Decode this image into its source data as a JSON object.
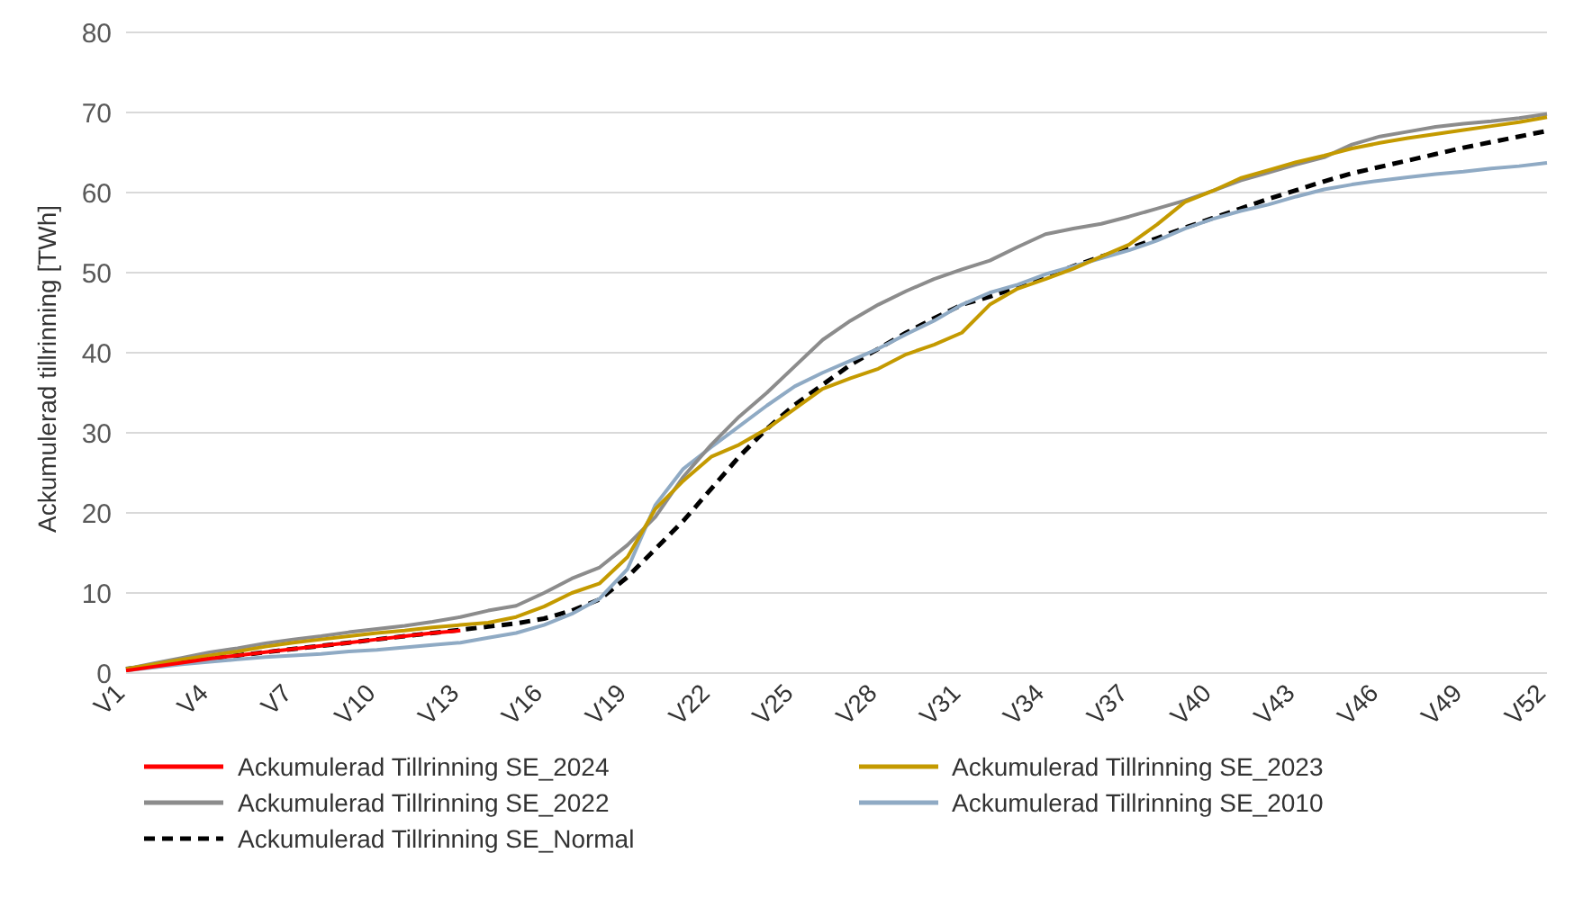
{
  "chart_data": {
    "type": "line",
    "ylabel": "Ackumulerad tillrinning [TWh]",
    "categories": [
      "V1",
      null,
      null,
      "V4",
      null,
      null,
      "V7",
      null,
      null,
      "V10",
      null,
      null,
      "V13",
      null,
      null,
      "V16",
      null,
      null,
      "V19",
      null,
      null,
      "V22",
      null,
      null,
      "V25",
      null,
      null,
      "V28",
      null,
      null,
      "V31",
      null,
      null,
      "V34",
      null,
      null,
      "V37",
      null,
      null,
      "V40",
      null,
      null,
      "V43",
      null,
      null,
      "V46",
      null,
      null,
      "V49",
      null,
      null,
      "V52"
    ],
    "ylim": [
      0,
      80
    ],
    "yticks": [
      0,
      10,
      20,
      30,
      40,
      50,
      60,
      70,
      80
    ],
    "grid": "y",
    "legend": "bottom",
    "marker": "none",
    "series": [
      {
        "name": "Ackumulerad Tillrinning SE_2024",
        "color": "#ff0000",
        "line_style": "solid",
        "values": [
          0.3,
          0.8,
          1.3,
          1.8,
          2.2,
          2.6,
          3,
          3.4,
          3.8,
          4.2,
          4.6,
          5,
          5.3,
          null,
          null,
          null,
          null,
          null,
          null,
          null,
          null,
          null,
          null,
          null,
          null,
          null,
          null,
          null,
          null,
          null,
          null,
          null,
          null,
          null,
          null,
          null,
          null,
          null,
          null,
          null,
          null,
          null,
          null,
          null,
          null,
          null,
          null,
          null,
          null,
          null,
          null,
          null
        ]
      },
      {
        "name": "Ackumulerad Tillrinning SE_2023",
        "color": "#c49a00",
        "line_style": "solid",
        "values": [
          0.5,
          1.1,
          1.7,
          2.2,
          2.7,
          3.3,
          3.8,
          4.2,
          4.6,
          5,
          5.3,
          5.7,
          6,
          6.3,
          7,
          8.3,
          10,
          11.2,
          14.5,
          20.5,
          24,
          27,
          28.5,
          30.5,
          33,
          35.5,
          36.8,
          38,
          39.8,
          41,
          42.5,
          46,
          48,
          49.2,
          50.5,
          52,
          53.5,
          56,
          58.8,
          60.2,
          61.8,
          62.8,
          63.8,
          64.6,
          65.5,
          66.2,
          66.8,
          67.3,
          67.8,
          68.3,
          68.8,
          69.4
        ]
      },
      {
        "name": "Ackumulerad Tillrinning SE_2022",
        "color": "#8c8c8c",
        "line_style": "solid",
        "values": [
          0.5,
          1.2,
          1.9,
          2.6,
          3.1,
          3.7,
          4.2,
          4.6,
          5.1,
          5.5,
          5.9,
          6.4,
          7,
          7.8,
          8.4,
          10,
          11.8,
          13.2,
          16,
          19.5,
          24.5,
          28.5,
          32,
          35,
          38.3,
          41.6,
          44,
          46,
          47.7,
          49.2,
          50.4,
          51.5,
          53.2,
          54.8,
          55.5,
          56.1,
          57,
          58,
          59,
          60.2,
          61.5,
          62.5,
          63.5,
          64.4,
          66,
          67,
          67.6,
          68.2,
          68.6,
          68.9,
          69.3,
          69.8
        ]
      },
      {
        "name": "Ackumulerad Tillrinning SE_2010",
        "color": "#8faac4",
        "line_style": "solid",
        "values": [
          0.3,
          0.7,
          1.1,
          1.4,
          1.7,
          2,
          2.2,
          2.4,
          2.7,
          2.9,
          3.2,
          3.5,
          3.8,
          4.4,
          5,
          6,
          7.4,
          9.3,
          13,
          21,
          25.5,
          28.2,
          30.8,
          33.4,
          35.8,
          37.5,
          39,
          40.5,
          42.3,
          44,
          46,
          47.5,
          48.5,
          49.8,
          50.8,
          51.8,
          52.8,
          54,
          55.5,
          56.7,
          57.7,
          58.5,
          59.5,
          60.4,
          61,
          61.5,
          61.9,
          62.3,
          62.6,
          63,
          63.3,
          63.7
        ]
      },
      {
        "name": "Ackumulerad Tillrinning SE_Normal",
        "color": "#000000",
        "line_style": "dashed",
        "values": [
          0.5,
          0.9,
          1.4,
          1.8,
          2.2,
          2.6,
          3,
          3.4,
          3.8,
          4.2,
          4.6,
          5,
          5.4,
          5.8,
          6.2,
          6.8,
          7.8,
          9.2,
          12,
          15.5,
          19,
          23,
          27,
          30.5,
          33.5,
          36,
          38.5,
          40.5,
          42.5,
          44.3,
          46,
          47,
          48.2,
          49.5,
          50.8,
          52,
          53,
          54.3,
          55.6,
          56.8,
          58,
          59.2,
          60.3,
          61.4,
          62.4,
          63.2,
          64,
          64.8,
          65.6,
          66.3,
          67,
          67.7
        ]
      }
    ]
  }
}
